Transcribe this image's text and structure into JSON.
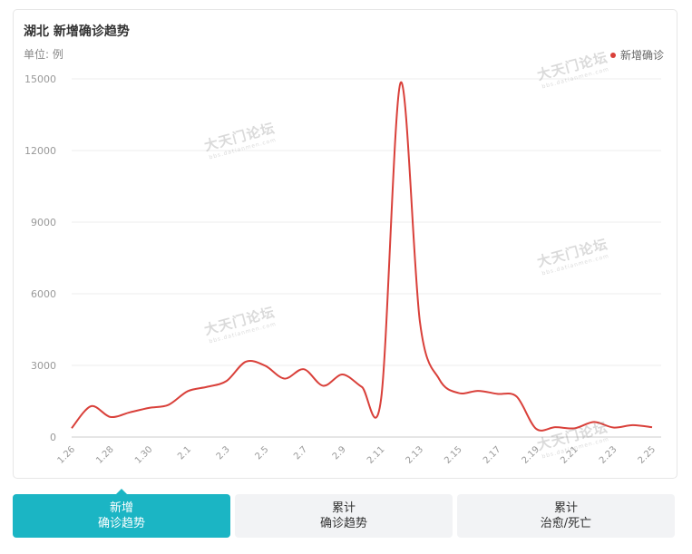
{
  "header": {
    "title": "湖北 新增确诊趋势",
    "unit": "单位: 例"
  },
  "colors": {
    "line": "#d9403a",
    "accent": "#1bb5c4",
    "grid": "#eeeeee",
    "axis_text": "#999999"
  },
  "watermark": {
    "text": "大天门论坛",
    "sub": "bbs.datianmen.com"
  },
  "chart_data": {
    "type": "line",
    "x_ticks": [
      "1.26",
      "1.28",
      "1.30",
      "2.1",
      "2.3",
      "2.5",
      "2.7",
      "2.9",
      "2.11",
      "2.13",
      "2.15",
      "2.17",
      "2.19",
      "2.21",
      "2.23",
      "2.25"
    ],
    "x": [
      "1.26",
      "1.27",
      "1.28",
      "1.29",
      "1.30",
      "1.31",
      "2.1",
      "2.2",
      "2.3",
      "2.4",
      "2.5",
      "2.6",
      "2.7",
      "2.8",
      "2.9",
      "2.10",
      "2.11",
      "2.12",
      "2.13",
      "2.14",
      "2.15",
      "2.16",
      "2.17",
      "2.18",
      "2.19",
      "2.20",
      "2.21",
      "2.22",
      "2.23",
      "2.24",
      "2.25"
    ],
    "series": [
      {
        "name": "新增确诊",
        "values": [
          371,
          1291,
          840,
          1032,
          1220,
          1347,
          1921,
          2103,
          2345,
          3156,
          2987,
          2447,
          2841,
          2147,
          2618,
          2097,
          1638,
          14840,
          4823,
          2420,
          1843,
          1933,
          1807,
          1693,
          349,
          411,
          366,
          630,
          398,
          499,
          411
        ]
      }
    ],
    "y_ticks": [
      "0",
      "3000",
      "6000",
      "9000",
      "12000",
      "15000"
    ],
    "ylim": [
      0,
      15000
    ],
    "grid": true,
    "legend_position": "top-right"
  },
  "tabs": [
    {
      "line1": "新增",
      "line2": "确诊趋势"
    },
    {
      "line1": "累计",
      "line2": "确诊趋势"
    },
    {
      "line1": "累计",
      "line2": "治愈/死亡"
    }
  ]
}
